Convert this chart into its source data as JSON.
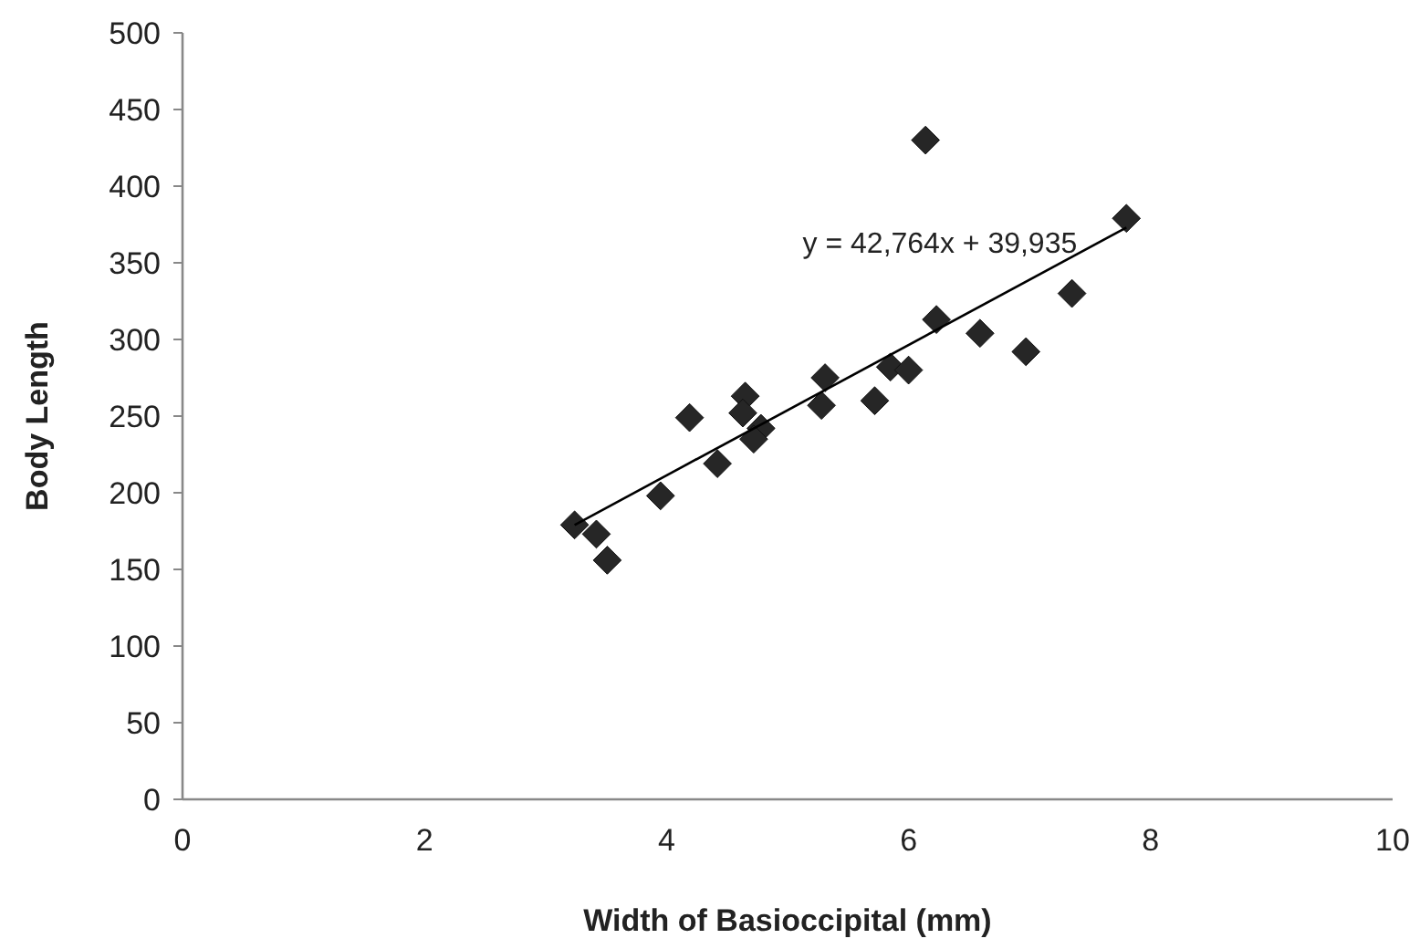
{
  "chart_data": {
    "type": "scatter",
    "xlabel": "Width of Basioccipital (mm)",
    "ylabel": "Body Length",
    "xlim": [
      0,
      10
    ],
    "xticks": [
      0,
      2,
      4,
      6,
      8,
      10
    ],
    "ylim": [
      0,
      500
    ],
    "yticks": [
      0,
      50,
      100,
      150,
      200,
      250,
      300,
      350,
      400,
      450,
      500
    ],
    "grid": false,
    "marker": "diamond",
    "series": [
      {
        "color": "#262626",
        "x": [
          3.24,
          3.42,
          3.51,
          3.95,
          4.19,
          4.42,
          4.65,
          4.63,
          4.78,
          4.72,
          5.28,
          5.31,
          5.72,
          5.85,
          6.0,
          6.14,
          6.23,
          6.59,
          6.97,
          7.35,
          7.8
        ],
        "values": [
          179,
          173,
          156,
          198,
          249,
          219,
          263,
          252,
          242,
          235,
          257,
          275,
          260,
          282,
          280,
          430,
          313,
          304,
          292,
          330,
          379
        ]
      },
      {
        "type": "line",
        "color": "#000000",
        "marker": "none",
        "x": [
          3.24,
          7.8
        ],
        "values": [
          179,
          373
        ]
      }
    ],
    "annotations": [
      "y = 42,764x + 39,935"
    ]
  }
}
